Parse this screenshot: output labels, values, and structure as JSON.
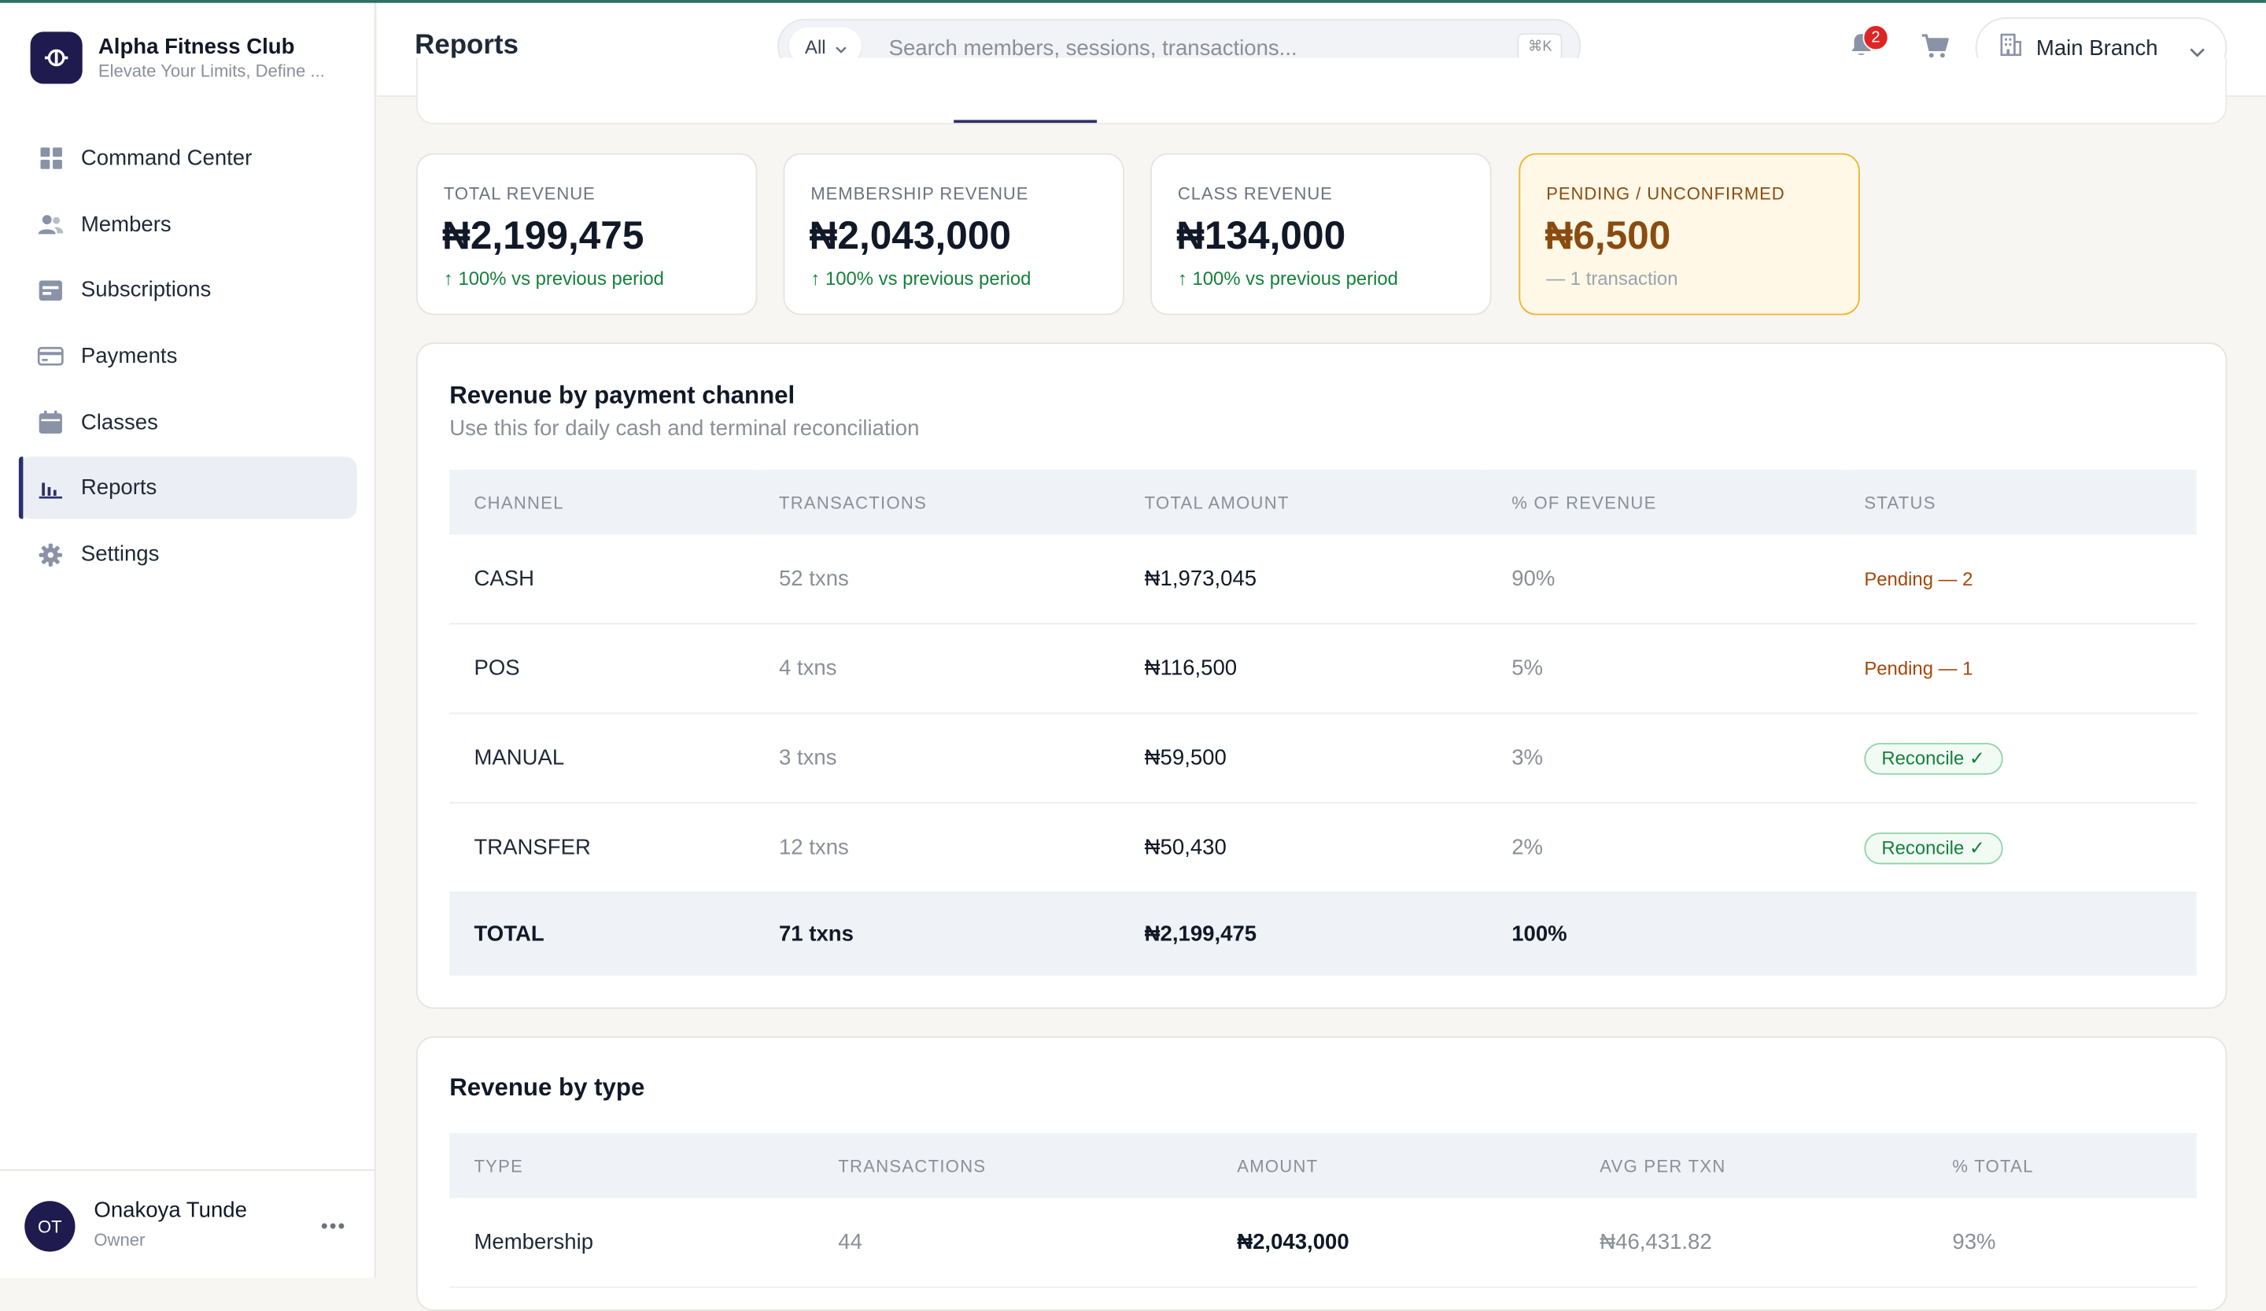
{
  "brand": {
    "name": "Alpha Fitness Club",
    "tagline": "Elevate Your Limits, Define ..."
  },
  "sidebar": {
    "items": [
      {
        "label": "Command Center",
        "icon": "grid-icon"
      },
      {
        "label": "Members",
        "icon": "users-icon"
      },
      {
        "label": "Subscriptions",
        "icon": "subscriptions-icon"
      },
      {
        "label": "Payments",
        "icon": "credit-card-icon"
      },
      {
        "label": "Classes",
        "icon": "calendar-icon"
      },
      {
        "label": "Reports",
        "icon": "bar-chart-icon",
        "active": true
      },
      {
        "label": "Settings",
        "icon": "gear-icon"
      }
    ]
  },
  "user": {
    "initials": "OT",
    "name": "Onakoya Tunde",
    "role": "Owner",
    "more": "•••"
  },
  "header": {
    "title": "Reports",
    "search": {
      "scope": "All",
      "placeholder": "Search members, sessions, transactions...",
      "shortcut": "⌘K"
    },
    "notifications_count": "2",
    "branch": "Main Branch"
  },
  "stats": [
    {
      "label": "TOTAL REVENUE",
      "value": "₦2,199,475",
      "trend": "↑ 100% vs previous period"
    },
    {
      "label": "MEMBERSHIP REVENUE",
      "value": "₦2,043,000",
      "trend": "↑ 100% vs previous period"
    },
    {
      "label": "CLASS REVENUE",
      "value": "₦134,000",
      "trend": "↑ 100% vs previous period"
    },
    {
      "label": "PENDING / UNCONFIRMED",
      "value": "₦6,500",
      "trend": "— 1 transaction"
    }
  ],
  "channel": {
    "title": "Revenue by payment channel",
    "subtitle": "Use this for daily cash and terminal reconciliation",
    "columns": [
      "CHANNEL",
      "TRANSACTIONS",
      "TOTAL AMOUNT",
      "% OF REVENUE",
      "STATUS"
    ],
    "rows": [
      {
        "channel": "CASH",
        "txns": "52 txns",
        "amount": "₦1,973,045",
        "pct": "90%",
        "status": "Pending — 2"
      },
      {
        "channel": "POS",
        "txns": "4 txns",
        "amount": "₦116,500",
        "pct": "5%",
        "status": "Pending — 1"
      },
      {
        "channel": "MANUAL",
        "txns": "3 txns",
        "amount": "₦59,500",
        "pct": "3%",
        "status": "Reconcile ✓"
      },
      {
        "channel": "TRANSFER",
        "txns": "12 txns",
        "amount": "₦50,430",
        "pct": "2%",
        "status": "Reconcile ✓"
      }
    ],
    "total": {
      "label": "TOTAL",
      "txns": "71 txns",
      "amount": "₦2,199,475",
      "pct": "100%"
    }
  },
  "by_type": {
    "title": "Revenue by type",
    "columns": [
      "TYPE",
      "TRANSACTIONS",
      "AMOUNT",
      "AVG PER TXN",
      "% TOTAL"
    ],
    "rows": [
      {
        "type": "Membership",
        "txns": "44",
        "amount": "₦2,043,000",
        "avg": "₦46,431.82",
        "pct": "93%"
      }
    ]
  }
}
